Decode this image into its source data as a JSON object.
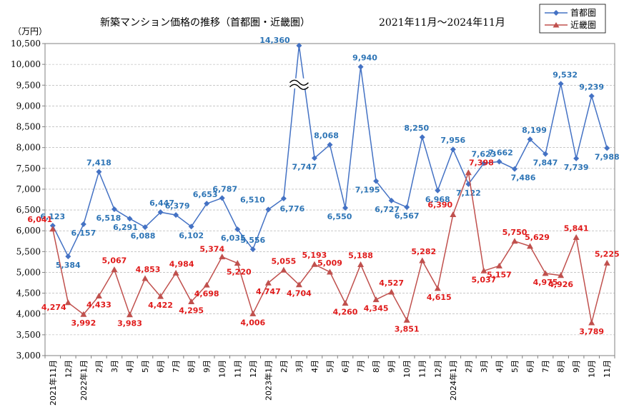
{
  "chart_data": {
    "type": "line",
    "title": "新築マンション価格の推移（首都圏・近畿圏）",
    "period": "2021年11月～2024年11月",
    "ylabel": "（万円）",
    "ylim": [
      3000,
      10500
    ],
    "ystep": 500,
    "axis_break_note": "首都圏 2023年3月 14,360 (axis broken)",
    "categories": [
      "2021年11月",
      "12月",
      "2022年1月",
      "2月",
      "3月",
      "4月",
      "5月",
      "6月",
      "7月",
      "8月",
      "9月",
      "10月",
      "11月",
      "12月",
      "2023年1月",
      "2月",
      "3月",
      "4月",
      "5月",
      "6月",
      "7月",
      "8月",
      "9月",
      "10月",
      "11月",
      "12月",
      "2024年1月",
      "2月",
      "3月",
      "4月",
      "5月",
      "6月",
      "7月",
      "8月",
      "9月",
      "10月",
      "11月"
    ],
    "series": [
      {
        "name": "首都圏",
        "color": "#4472c4",
        "label_color": "#2e75b6",
        "marker": "diamond",
        "values": [
          6123,
          5384,
          6157,
          7418,
          6518,
          6291,
          6088,
          6447,
          6379,
          6102,
          6653,
          6787,
          6035,
          5556,
          6510,
          6776,
          14360,
          7747,
          8068,
          6550,
          9940,
          7195,
          6727,
          6567,
          8250,
          6968,
          7956,
          7122,
          7623,
          7662,
          7486,
          8199,
          7847,
          9532,
          7739,
          9239,
          7988
        ],
        "labels": [
          "6,123",
          "5,384",
          "6,157",
          "7,418",
          "6,518",
          "6,291",
          "6,088",
          "6,447",
          "6,379",
          "6,102",
          "6,653",
          "6,787",
          "6,035",
          "5,556",
          "6,510",
          "6,776",
          "14,360",
          "7,747",
          "8,068",
          "6,550",
          "9,940",
          "7,195",
          "6,727",
          "6,567",
          "8,250",
          "6,968",
          "7,956",
          "7,122",
          "7,623",
          "7,662",
          "7,486",
          "8,199",
          "7,847",
          "9,532",
          "7,739",
          "9,239",
          "7,988"
        ]
      },
      {
        "name": "近畿圏",
        "color": "#c0504d",
        "label_color": "#e01b1b",
        "marker": "triangle",
        "values": [
          6041,
          4274,
          3992,
          4433,
          5067,
          3983,
          4853,
          4422,
          4984,
          4295,
          4698,
          5374,
          5220,
          4006,
          4747,
          5055,
          4704,
          5193,
          5009,
          4260,
          5188,
          4345,
          4527,
          3851,
          5282,
          4615,
          6390,
          7398,
          5037,
          5157,
          5750,
          5629,
          4975,
          4926,
          5841,
          3789,
          5225
        ],
        "labels": [
          "6,041",
          "4,274",
          "3,992",
          "4,433",
          "5,067",
          "3,983",
          "4,853",
          "4,422",
          "4,984",
          "4,295",
          "4,698",
          "5,374",
          "5,220",
          "4,006",
          "4,747",
          "5,055",
          "4,704",
          "5,193",
          "5,009",
          "4,260",
          "5,188",
          "4,345",
          "4,527",
          "3,851",
          "5,282",
          "4,615",
          "6,390",
          "7,398",
          "5,037",
          "5,157",
          "5,750",
          "5,629",
          "4,975",
          "4,926",
          "5,841",
          "3,789",
          "5,225"
        ]
      }
    ],
    "ytick_labels": [
      "3,000",
      "3,500",
      "4,000",
      "4,500",
      "5,000",
      "5,500",
      "6,000",
      "6,500",
      "7,000",
      "7,500",
      "8,000",
      "8,500",
      "9,000",
      "9,500",
      "10,000",
      "10,500"
    ]
  }
}
